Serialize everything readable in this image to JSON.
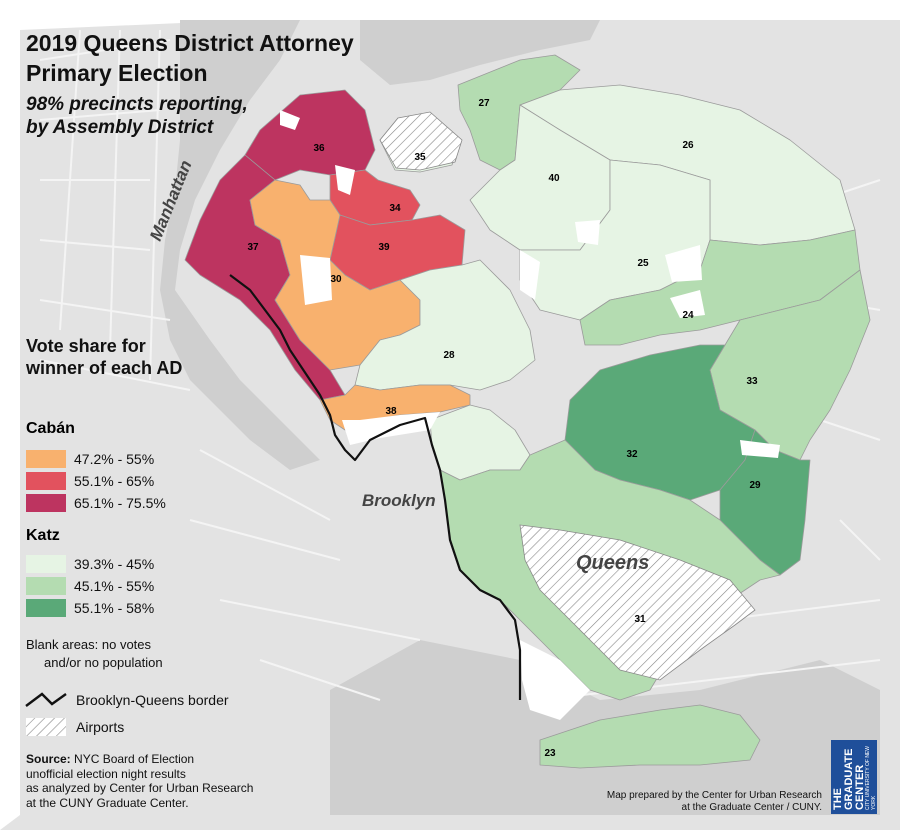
{
  "title_line1": "2019 Queens District Attorney",
  "title_line2": "Primary Election",
  "subtitle_line1": "98% precincts reporting,",
  "subtitle_line2": "by Assembly District",
  "places": {
    "manhattan": "Manhattan",
    "brooklyn": "Brooklyn",
    "queens": "Queens"
  },
  "legend": {
    "heading": "Vote share for winner of each AD",
    "caban": {
      "name": "Cabán",
      "classes": [
        {
          "label": "47.2% - 55%",
          "color": "#f8b16e"
        },
        {
          "label": "55.1% - 65%",
          "color": "#e2525e"
        },
        {
          "label": "65.1% - 75.5%",
          "color": "#bd3460"
        }
      ]
    },
    "katz": {
      "name": "Katz",
      "classes": [
        {
          "label": "39.3% - 45%",
          "color": "#e6f4e4"
        },
        {
          "label": "45.1% - 55%",
          "color": "#b4dcb1"
        },
        {
          "label": "55.1% - 58%",
          "color": "#5aa978"
        }
      ]
    },
    "blank_line1": "Blank areas: no votes",
    "blank_line2": "and/or no population",
    "border_label": "Brooklyn-Queens border",
    "airports_label": "Airports"
  },
  "districts": [
    {
      "id": "23",
      "winner": "Katz",
      "class": 1
    },
    {
      "id": "24",
      "winner": "Katz",
      "class": 1
    },
    {
      "id": "25",
      "winner": "Katz",
      "class": 0
    },
    {
      "id": "26",
      "winner": "Katz",
      "class": 0
    },
    {
      "id": "27",
      "winner": "Katz",
      "class": 1
    },
    {
      "id": "28",
      "winner": "Katz",
      "class": 0
    },
    {
      "id": "29",
      "winner": "Katz",
      "class": 2
    },
    {
      "id": "30",
      "winner": "Cabán",
      "class": 0
    },
    {
      "id": "31",
      "winner": "Katz",
      "class": 0
    },
    {
      "id": "32",
      "winner": "Katz",
      "class": 2
    },
    {
      "id": "33",
      "winner": "Katz",
      "class": 1
    },
    {
      "id": "34",
      "winner": "Cabán",
      "class": 1
    },
    {
      "id": "35",
      "winner": "Katz",
      "class": 0
    },
    {
      "id": "36",
      "winner": "Cabán",
      "class": 2
    },
    {
      "id": "37",
      "winner": "Cabán",
      "class": 2
    },
    {
      "id": "38",
      "winner": "Cabán",
      "class": 0
    },
    {
      "id": "39",
      "winner": "Cabán",
      "class": 1
    },
    {
      "id": "40",
      "winner": "Katz",
      "class": 0
    }
  ],
  "source_bold": "Source:",
  "source_line1": "NYC Board of Election",
  "source_line2": "unofficial election night results",
  "source_line3": "as analyzed by Center for Urban Research",
  "source_line4": "at the CUNY Graduate Center.",
  "credit_line1": "Map prepared by the Center for Urban Research",
  "credit_line2": "at the Graduate Center / CUNY.",
  "logo_text": "THE GRADUATE CENTER",
  "logo_small": "CITY UNIVERSITY OF NEW YORK"
}
